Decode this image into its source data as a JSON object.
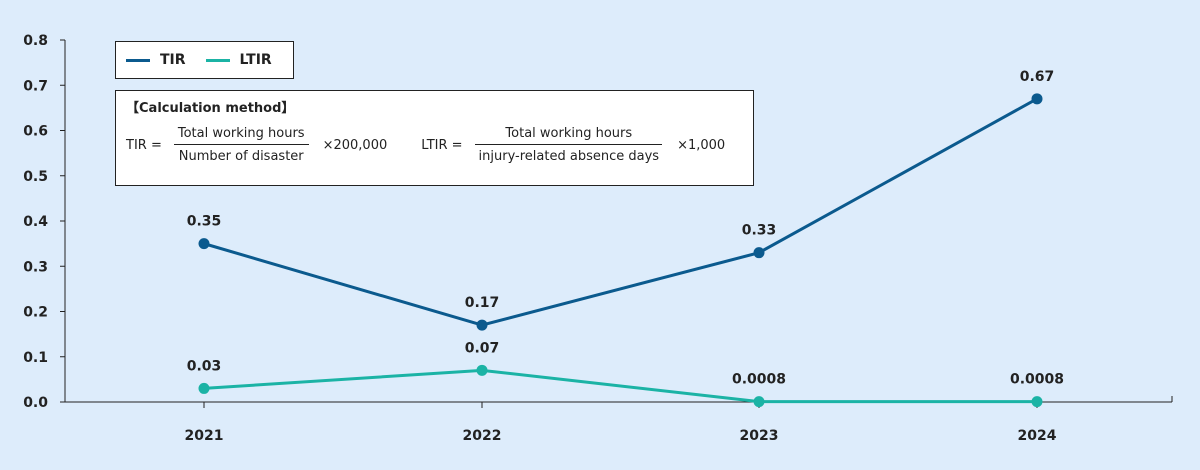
{
  "chart_data": {
    "type": "line",
    "categories": [
      "2021",
      "2022",
      "2023",
      "2024"
    ],
    "series": [
      {
        "name": "TIR",
        "values": [
          0.35,
          0.17,
          0.33,
          0.67
        ],
        "labels": [
          "0.35",
          "0.17",
          "0.33",
          "0.67"
        ],
        "color": "#0b5a8e"
      },
      {
        "name": "LTIR",
        "values": [
          0.03,
          0.07,
          0.0008,
          0.0008
        ],
        "labels": [
          "0.03",
          "0.07",
          "0.0008",
          "0.0008"
        ],
        "color": "#1bb3a5"
      }
    ],
    "ylim": [
      0,
      0.8
    ],
    "yticks": [
      "0.0",
      "0.1",
      "0.2",
      "0.3",
      "0.4",
      "0.5",
      "0.6",
      "0.7",
      "0.8"
    ],
    "grid": false,
    "legend": "top-left"
  },
  "calc": {
    "title": "【Calculation method】",
    "tir_label": "TIR =",
    "tir_num": "Total working hours",
    "tir_den": "Number of disaster",
    "tir_mult": "×200,000",
    "ltir_label": "LTIR =",
    "ltir_num": "Total working hours",
    "ltir_den": "injury-related absence days",
    "ltir_mult": "×1,000"
  }
}
